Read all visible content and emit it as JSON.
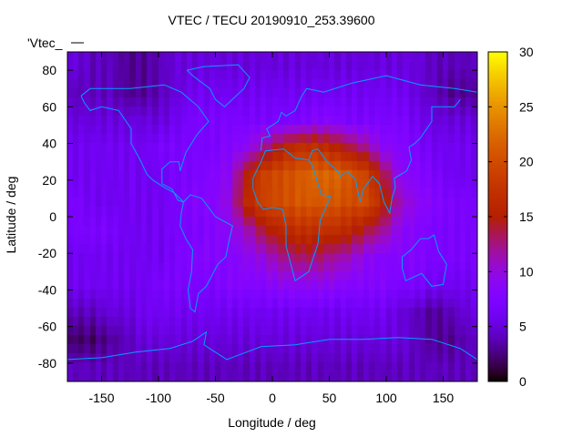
{
  "chart_data": {
    "type": "heatmap",
    "title": "VTEC / TECU 20190910_253.39600",
    "xlabel": "Longitude / deg",
    "ylabel": "Latitude / deg",
    "key_label": "'Vtec_",
    "xlim": [
      -180,
      180
    ],
    "ylim": [
      -90,
      90
    ],
    "zlim": [
      0,
      30
    ],
    "xticks": [
      -150,
      -100,
      -50,
      0,
      50,
      100,
      150
    ],
    "yticks": [
      -80,
      -60,
      -40,
      -20,
      0,
      20,
      40,
      60,
      80
    ],
    "cbticks": [
      0,
      5,
      10,
      15,
      20,
      25,
      30
    ],
    "grid_lon": [
      -172.5,
      -157.5,
      -142.5,
      -127.5,
      -112.5,
      -97.5,
      -82.5,
      -67.5,
      -52.5,
      -37.5,
      -22.5,
      -7.5,
      7.5,
      22.5,
      37.5,
      52.5,
      67.5,
      82.5,
      97.5,
      112.5,
      127.5,
      142.5,
      157.5,
      172.5
    ],
    "grid_lat": [
      82.5,
      67.5,
      52.5,
      37.5,
      22.5,
      7.5,
      -7.5,
      -22.5,
      -37.5,
      -52.5,
      -67.5,
      -82.5
    ],
    "values": [
      [
        5,
        4,
        4,
        3,
        3,
        4,
        5,
        5,
        5,
        5,
        5,
        5,
        5,
        5,
        5,
        5,
        5,
        5,
        5,
        5,
        5,
        4,
        4,
        4
      ],
      [
        4,
        4,
        4,
        3,
        3,
        4,
        5,
        6,
        6,
        6,
        6,
        6,
        6,
        6,
        6,
        6,
        6,
        6,
        6,
        6,
        5,
        4,
        3,
        3
      ],
      [
        5,
        5,
        5,
        5,
        5,
        5,
        6,
        7,
        7,
        7,
        7,
        7,
        7,
        7,
        8,
        8,
        7,
        7,
        7,
        7,
        6,
        5,
        5,
        5
      ],
      [
        6,
        6,
        6,
        6,
        6,
        7,
        7,
        7,
        7,
        8,
        9,
        12,
        15,
        17,
        17,
        16,
        14,
        12,
        9,
        8,
        7,
        6,
        6,
        6
      ],
      [
        6,
        6,
        6,
        6,
        6,
        6,
        7,
        7,
        8,
        9,
        15,
        19,
        20,
        21,
        22,
        22,
        21,
        19,
        14,
        9,
        8,
        7,
        6,
        6
      ],
      [
        7,
        6,
        6,
        6,
        6,
        6,
        7,
        8,
        8,
        10,
        16,
        19,
        20,
        21,
        21,
        21,
        20,
        20,
        16,
        11,
        9,
        8,
        7,
        7
      ],
      [
        7,
        7,
        7,
        6,
        6,
        6,
        7,
        7,
        8,
        9,
        11,
        14,
        16,
        17,
        17,
        17,
        16,
        14,
        12,
        9,
        8,
        7,
        7,
        7
      ],
      [
        6,
        6,
        6,
        6,
        6,
        6,
        7,
        8,
        8,
        8,
        9,
        10,
        12,
        13,
        13,
        12,
        11,
        9,
        8,
        8,
        8,
        7,
        7,
        7
      ],
      [
        6,
        6,
        6,
        6,
        6,
        7,
        7,
        7,
        7,
        8,
        8,
        8,
        9,
        9,
        9,
        9,
        8,
        8,
        8,
        7,
        7,
        6,
        6,
        6
      ],
      [
        4,
        4,
        5,
        5,
        6,
        6,
        6,
        6,
        6,
        6,
        6,
        6,
        6,
        6,
        6,
        6,
        6,
        6,
        6,
        5,
        4,
        3,
        4,
        5
      ],
      [
        2,
        2,
        3,
        4,
        5,
        5,
        5,
        5,
        5,
        5,
        5,
        5,
        5,
        5,
        5,
        5,
        5,
        5,
        5,
        5,
        4,
        3,
        3,
        4
      ],
      [
        4,
        4,
        4,
        4,
        4,
        4,
        4,
        4,
        4,
        4,
        4,
        4,
        4,
        4,
        4,
        4,
        4,
        4,
        4,
        4,
        4,
        4,
        4,
        4
      ]
    ],
    "palette": "gnuplot default (rgbformulae 7,5,15)",
    "coastline_color": "#00a0ff"
  }
}
